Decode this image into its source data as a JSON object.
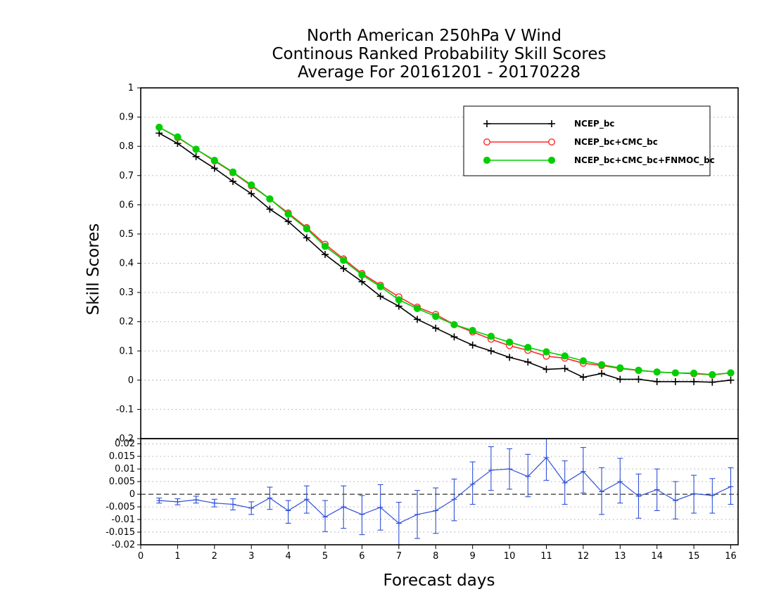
{
  "title": {
    "line1": "North American 250hPa V Wind",
    "line2": "Continous Ranked Probability Skill Scores",
    "line3": "Average For 20161201 - 20170228"
  },
  "colors": {
    "ncep_bc": "#000000",
    "ncep_bc_cmc": "#ff2a2a",
    "ncep_bc_cmc_fnmoc": "#00d000",
    "diff": "#3050d8"
  },
  "chart_data": [
    {
      "type": "line",
      "title": "North American 250hPa V Wind / Continous Ranked Probability Skill Scores / Average For 20161201 - 20170228",
      "xlabel": "Forecast days",
      "ylabel": "Skill Scores",
      "xlim": [
        0,
        16.2
      ],
      "ylim": [
        -0.2,
        1
      ],
      "yticks": [
        "-0.2",
        "-0.1",
        "0",
        "0.1",
        "0.2",
        "0.3",
        "0.4",
        "0.5",
        "0.6",
        "0.7",
        "0.8",
        "0.9",
        "1"
      ],
      "grid": "horizontal dotted",
      "legend_position": "top-right",
      "x": [
        0.5,
        1,
        1.5,
        2,
        2.5,
        3,
        3.5,
        4,
        4.5,
        5,
        5.5,
        6,
        6.5,
        7,
        7.5,
        8,
        8.5,
        9,
        9.5,
        10,
        10.5,
        11,
        11.5,
        12,
        12.5,
        13,
        13.5,
        14,
        14.5,
        15,
        15.5,
        16
      ],
      "series": [
        {
          "name": "NCEP_bc",
          "marker": "plus",
          "color": "#000000",
          "values": [
            0.845,
            0.81,
            0.765,
            0.725,
            0.68,
            0.638,
            0.585,
            0.543,
            0.487,
            0.43,
            0.382,
            0.337,
            0.287,
            0.253,
            0.208,
            0.178,
            0.148,
            0.12,
            0.1,
            0.078,
            0.062,
            0.037,
            0.04,
            0.01,
            0.023,
            0.003,
            0.003,
            -0.005,
            -0.005,
            -0.005,
            -0.007,
            0.0
          ]
        },
        {
          "name": "NCEP_bc+CMC_bc",
          "marker": "open-circle",
          "color": "#ff2a2a",
          "values": [
            0.865,
            0.83,
            0.79,
            0.75,
            0.71,
            0.665,
            0.62,
            0.572,
            0.522,
            0.465,
            0.415,
            0.365,
            0.325,
            0.285,
            0.25,
            0.225,
            0.19,
            0.165,
            0.14,
            0.118,
            0.102,
            0.082,
            0.075,
            0.058,
            0.05,
            0.04,
            0.033,
            0.028,
            0.025,
            0.022,
            0.018,
            0.025
          ]
        },
        {
          "name": "NCEP_bc+CMC_bc+FNMOC_bc",
          "marker": "filled-circle",
          "color": "#00d000",
          "values": [
            0.865,
            0.832,
            0.79,
            0.752,
            0.712,
            0.668,
            0.62,
            0.568,
            0.518,
            0.458,
            0.41,
            0.36,
            0.32,
            0.275,
            0.245,
            0.218,
            0.19,
            0.17,
            0.15,
            0.13,
            0.112,
            0.097,
            0.083,
            0.066,
            0.053,
            0.042,
            0.034,
            0.028,
            0.025,
            0.024,
            0.019,
            0.025
          ]
        }
      ]
    },
    {
      "type": "line",
      "xlabel": "Forecast days",
      "xlim": [
        0,
        16.2
      ],
      "ylim": [
        -0.02,
        0.022
      ],
      "xticks": [
        "0",
        "1",
        "2",
        "3",
        "4",
        "5",
        "6",
        "7",
        "8",
        "9",
        "10",
        "11",
        "12",
        "13",
        "14",
        "15",
        "16"
      ],
      "yticks": [
        "-0.02",
        "-0.015",
        "-0.01",
        "-0.005",
        "0",
        "0.005",
        "0.01",
        "0.015",
        "0.02"
      ],
      "grid": "horizontal dotted",
      "reference_line": 0,
      "x": [
        0.5,
        1,
        1.5,
        2,
        2.5,
        3,
        3.5,
        4,
        4.5,
        5,
        5.5,
        6,
        6.5,
        7,
        7.5,
        8,
        8.5,
        9,
        9.5,
        10,
        10.5,
        11,
        11.5,
        12,
        12.5,
        13,
        13.5,
        14,
        14.5,
        15,
        15.5,
        16
      ],
      "series": [
        {
          "color": "#3050d8",
          "values": [
            -0.0025,
            -0.003,
            -0.0022,
            -0.0035,
            -0.004,
            -0.0055,
            -0.0015,
            -0.0065,
            -0.002,
            -0.009,
            -0.005,
            -0.008,
            -0.0052,
            -0.0115,
            -0.008,
            -0.0065,
            -0.002,
            0.004,
            0.0095,
            0.01,
            0.007,
            0.0145,
            0.0045,
            0.009,
            0.001,
            0.005,
            -0.0008,
            0.0018,
            -0.0025,
            0.0002,
            -0.0005,
            0.003
          ],
          "error_low": [
            -0.0035,
            -0.0042,
            -0.0035,
            -0.005,
            -0.0062,
            -0.008,
            -0.006,
            -0.0115,
            -0.0075,
            -0.0148,
            -0.0135,
            -0.016,
            -0.0142,
            -0.02,
            -0.0175,
            -0.0155,
            -0.0105,
            -0.004,
            0.0015,
            0.002,
            -0.001,
            0.0055,
            -0.004,
            0.0005,
            -0.008,
            -0.0035,
            -0.0095,
            -0.0065,
            -0.0098,
            -0.0075,
            -0.0075,
            -0.004
          ],
          "error_high": [
            -0.0015,
            -0.0018,
            -0.0008,
            -0.002,
            -0.0018,
            -0.003,
            0.0028,
            -0.0025,
            0.0033,
            -0.0025,
            0.0033,
            -0.0005,
            0.0038,
            -0.0032,
            0.0015,
            0.0025,
            0.006,
            0.0128,
            0.0188,
            0.018,
            0.0158,
            0.0232,
            0.0132,
            0.0185,
            0.0105,
            0.0142,
            0.008,
            0.01,
            0.005,
            0.0075,
            0.0062,
            0.0105
          ]
        }
      ]
    }
  ]
}
